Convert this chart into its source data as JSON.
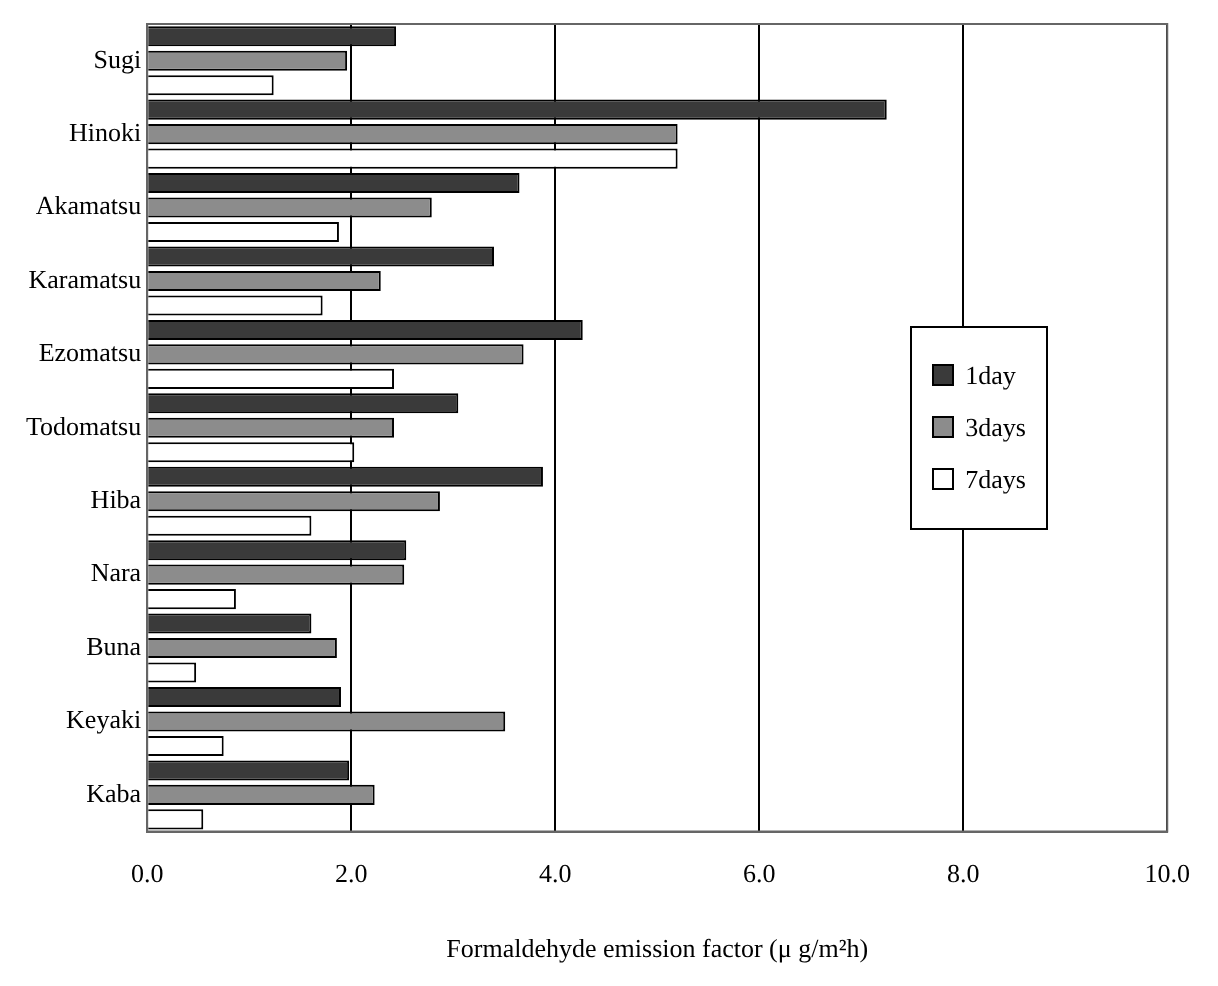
{
  "chart_data": {
    "type": "bar",
    "orientation": "horizontal",
    "xlabel": "Formaldehyde emission factor (μ g/m²h)",
    "categories": [
      "Sugi",
      "Hinoki",
      "Akamatsu",
      "Karamatsu",
      "Ezomatsu",
      "Todomatsu",
      "Hiba",
      "Nara",
      "Buna",
      "Keyaki",
      "Kaba"
    ],
    "series": [
      {
        "name": "1day",
        "color": "#3a3a3a",
        "values": [
          2.44,
          7.25,
          3.65,
          3.4,
          4.27,
          3.05,
          3.88,
          2.54,
          1.61,
          1.9,
          1.98
        ]
      },
      {
        "name": "3days",
        "color": "#8c8c8c",
        "values": [
          1.96,
          5.2,
          2.79,
          2.29,
          3.69,
          2.42,
          2.87,
          2.52,
          1.86,
          3.51,
          2.23
        ]
      },
      {
        "name": "7days",
        "color": "#ffffff",
        "values": [
          1.24,
          5.2,
          1.88,
          1.72,
          2.42,
          2.03,
          1.61,
          0.87,
          0.48,
          0.75,
          0.55
        ]
      }
    ],
    "xlim": [
      0,
      10
    ],
    "xticks": [
      {
        "value": 0,
        "label": "0.0"
      },
      {
        "value": 2,
        "label": "2.0"
      },
      {
        "value": 4,
        "label": "4.0"
      },
      {
        "value": 6,
        "label": "6.0"
      },
      {
        "value": 8,
        "label": "8.0"
      },
      {
        "value": 10,
        "label": "10.0"
      }
    ],
    "grid": "x",
    "legend": "right"
  }
}
